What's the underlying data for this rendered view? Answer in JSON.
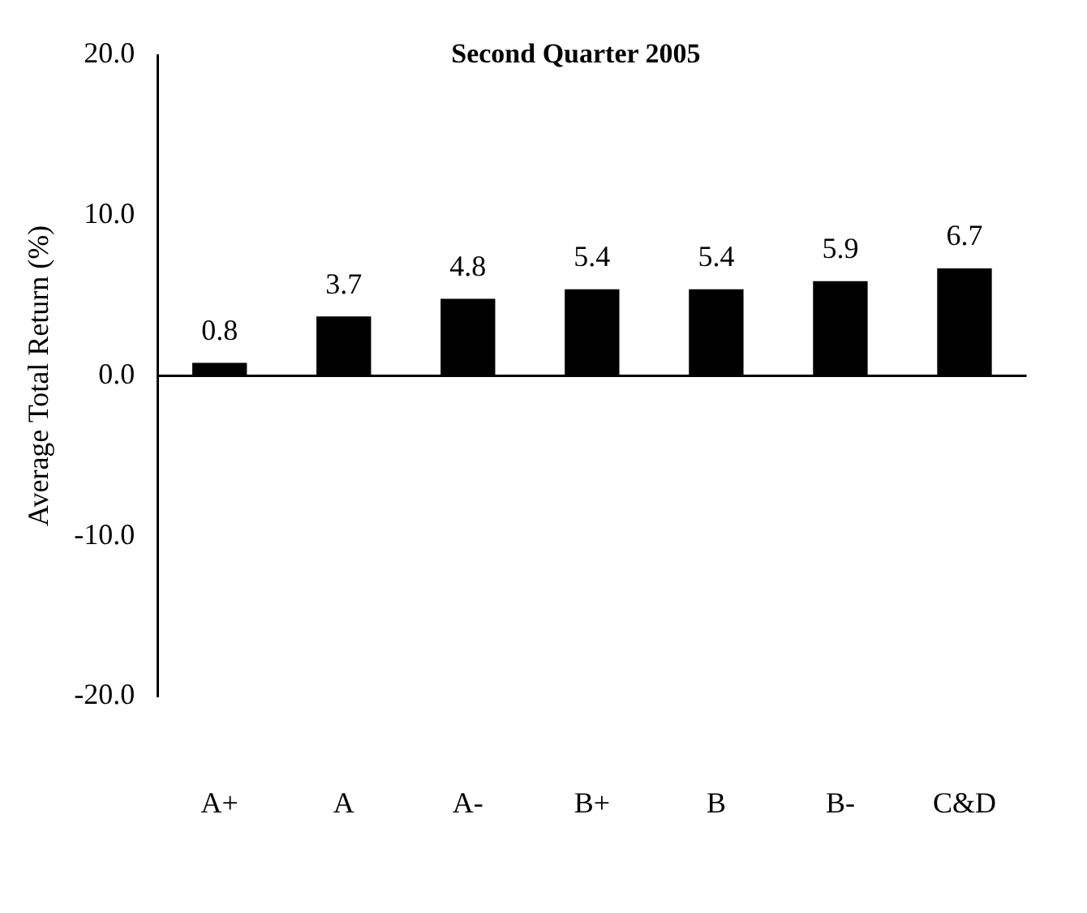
{
  "chart_data": {
    "type": "bar",
    "title": "Second Quarter 2005",
    "ylabel": "Average Total Return (%)",
    "categories": [
      "A+",
      "A",
      "A-",
      "B+",
      "B",
      "B-",
      "C&D"
    ],
    "values": [
      0.8,
      3.7,
      4.8,
      5.4,
      5.4,
      5.9,
      6.7
    ],
    "color": "#000000",
    "ylim": [
      -20,
      20
    ],
    "yticks": [
      {
        "value": -20,
        "label": "-20.0"
      },
      {
        "value": -10,
        "label": "-10.0"
      },
      {
        "value": 0,
        "label": "0.0"
      },
      {
        "value": 10,
        "label": "10.0"
      },
      {
        "value": 20,
        "label": "20.0"
      }
    ],
    "ref_lines": [
      {
        "axis": "y",
        "value": 0,
        "color": "#000000"
      }
    ],
    "grid": false,
    "legend": false,
    "data_labels": true
  }
}
